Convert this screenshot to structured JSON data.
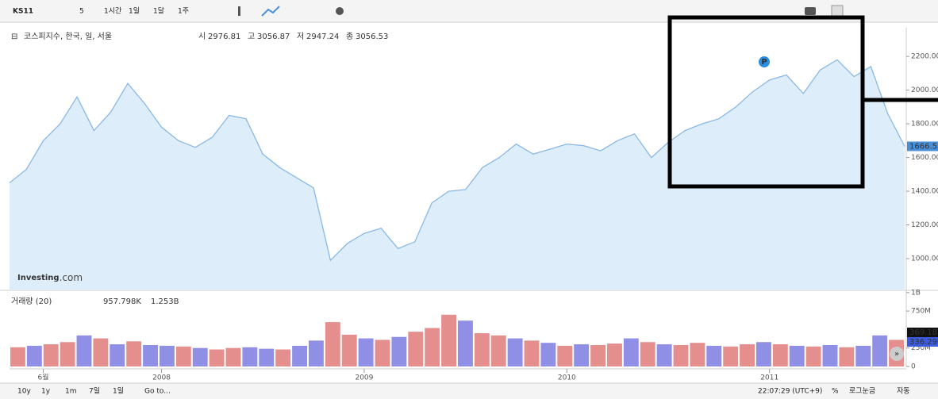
{
  "toolbar": {
    "symbol": "KS11",
    "intervals": [
      "5",
      "1시간",
      "1일",
      "1달",
      "1주"
    ]
  },
  "logo": {
    "name": "Investing",
    "suffix": ".com"
  },
  "footer": {
    "ranges": [
      "10y",
      "1y",
      "1m",
      "7일",
      "1일"
    ],
    "goto": "Go to...",
    "time": "22:07:29 (UTC+9)",
    "options": [
      "%",
      "로그눈금",
      "자동"
    ]
  },
  "chart_data": [
    {
      "type": "line",
      "title": "코스피지수, 한국, 일, 서울",
      "legend_items": [
        {
          "label": "시",
          "value": 2976.81
        },
        {
          "label": "고",
          "value": 3056.87
        },
        {
          "label": "저",
          "value": 2947.24
        },
        {
          "label": "종",
          "value": 3056.53
        }
      ],
      "categories": [
        null,
        null,
        "6월",
        null,
        null,
        null,
        null,
        null,
        null,
        "2008",
        null,
        null,
        null,
        null,
        null,
        null,
        null,
        null,
        null,
        null,
        null,
        "2009",
        null,
        null,
        null,
        null,
        null,
        null,
        null,
        null,
        null,
        null,
        null,
        "2010",
        null,
        null,
        null,
        null,
        null,
        null,
        null,
        null,
        null,
        null,
        null,
        "2011",
        null,
        null,
        null,
        null,
        null,
        null,
        null,
        null
      ],
      "values": [
        1450,
        1530,
        1700,
        1800,
        1960,
        1760,
        1870,
        2040,
        1920,
        1780,
        1700,
        1660,
        1720,
        1850,
        1830,
        1620,
        1540,
        1480,
        1420,
        990,
        1090,
        1150,
        1180,
        1060,
        1100,
        1330,
        1400,
        1410,
        1540,
        1600,
        1680,
        1620,
        1650,
        1680,
        1670,
        1640,
        1700,
        1740,
        1600,
        1690,
        1760,
        1800,
        1830,
        1900,
        1990,
        2060,
        2090,
        1980,
        2120,
        2180,
        2080,
        2140,
        1860,
        1666.52
      ],
      "color": "#8ab8e6",
      "fill": "#ddeefa",
      "ylim": [
        812,
        2370
      ],
      "yticks": [
        {
          "value": 1000,
          "label": "1000.00"
        },
        {
          "value": 1200,
          "label": "1200.00"
        },
        {
          "value": 1400,
          "label": "1400.00"
        },
        {
          "value": 1600,
          "label": "1600.00"
        },
        {
          "value": 1800,
          "label": "1800.00"
        },
        {
          "value": 2000,
          "label": "2000.00"
        },
        {
          "value": 2200,
          "label": "2200.00"
        }
      ]
    },
    {
      "type": "bar",
      "title": "거래량 (20)",
      "readouts": [
        "957.798K",
        "1.253B"
      ],
      "values": [
        260000000,
        280000000,
        300000000,
        330000000,
        420000000,
        380000000,
        300000000,
        340000000,
        290000000,
        280000000,
        270000000,
        250000000,
        230000000,
        250000000,
        260000000,
        240000000,
        230000000,
        280000000,
        350000000,
        600000000,
        430000000,
        380000000,
        360000000,
        400000000,
        470000000,
        520000000,
        700000000,
        620000000,
        450000000,
        420000000,
        380000000,
        350000000,
        320000000,
        280000000,
        300000000,
        290000000,
        310000000,
        380000000,
        330000000,
        300000000,
        290000000,
        320000000,
        280000000,
        270000000,
        300000000,
        330000000,
        300000000,
        280000000,
        270000000,
        290000000,
        260000000,
        280000000,
        420000000,
        360000000
      ],
      "colors": [
        "#e07a7a",
        "#7b7be0",
        "#e07a7a",
        "#e07a7a",
        "#7b7be0",
        "#e07a7a",
        "#7b7be0",
        "#e07a7a",
        "#7b7be0",
        "#7b7be0",
        "#e07a7a",
        "#7b7be0",
        "#e07a7a",
        "#e07a7a",
        "#7b7be0",
        "#7b7be0",
        "#e07a7a",
        "#7b7be0",
        "#7b7be0",
        "#e07a7a",
        "#e07a7a",
        "#7b7be0",
        "#e07a7a",
        "#7b7be0",
        "#e07a7a",
        "#e07a7a",
        "#e07a7a",
        "#7b7be0",
        "#e07a7a",
        "#e07a7a",
        "#7b7be0",
        "#e07a7a",
        "#7b7be0",
        "#e07a7a",
        "#7b7be0",
        "#e07a7a",
        "#e07a7a",
        "#7b7be0",
        "#e07a7a",
        "#7b7be0",
        "#e07a7a",
        "#e07a7a",
        "#7b7be0",
        "#e07a7a",
        "#e07a7a",
        "#7b7be0",
        "#e07a7a",
        "#7b7be0",
        "#e07a7a",
        "#7b7be0",
        "#e07a7a",
        "#7b7be0",
        "#7b7be0",
        "#e07a7a"
      ],
      "ylim": [
        0,
        1030000000
      ],
      "yticks": [
        0,
        {
          "value": 250000000,
          "label": "250M"
        },
        {
          "value": 750000000,
          "label": "750M"
        },
        {
          "value": 1000000000,
          "label": "1B"
        }
      ],
      "markers": [
        "369.187",
        "336.296"
      ]
    }
  ]
}
